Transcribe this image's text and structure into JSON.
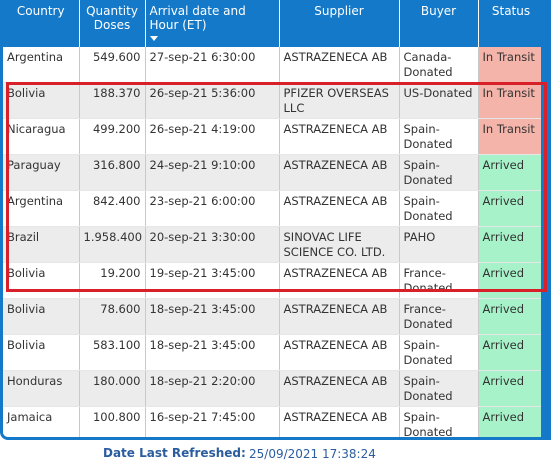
{
  "table": {
    "headers": {
      "country": "Country",
      "quantity": "Quantity Doses",
      "arrival": "Arrival date and Hour (ET)",
      "supplier": "Supplier",
      "buyer": "Buyer",
      "status": "Status"
    },
    "rows": [
      {
        "country": "Argentina",
        "quantity": "549.600",
        "arrival": "27-sep-21 6:30:00",
        "supplier": "ASTRAZENECA AB",
        "buyer": "Canada-Donated",
        "status": "In Transit"
      },
      {
        "country": "Bolivia",
        "quantity": "188.370",
        "arrival": "26-sep-21 5:36:00",
        "supplier": "PFIZER OVERSEAS LLC",
        "buyer": "US-Donated",
        "status": "In Transit"
      },
      {
        "country": "Nicaragua",
        "quantity": "499.200",
        "arrival": "26-sep-21 4:19:00",
        "supplier": "ASTRAZENECA AB",
        "buyer": "Spain-Donated",
        "status": "In Transit"
      },
      {
        "country": "Paraguay",
        "quantity": "316.800",
        "arrival": "24-sep-21 9:10:00",
        "supplier": "ASTRAZENECA AB",
        "buyer": "Spain-Donated",
        "status": "Arrived"
      },
      {
        "country": "Argentina",
        "quantity": "842.400",
        "arrival": "23-sep-21 6:00:00",
        "supplier": "ASTRAZENECA AB",
        "buyer": "Spain-Donated",
        "status": "Arrived"
      },
      {
        "country": "Brazil",
        "quantity": "1.958.400",
        "arrival": "20-sep-21 3:30:00",
        "supplier": "SINOVAC LIFE SCIENCE CO. LTD.",
        "buyer": "PAHO",
        "status": "Arrived"
      },
      {
        "country": "Bolivia",
        "quantity": "19.200",
        "arrival": "19-sep-21 3:45:00",
        "supplier": "ASTRAZENECA AB",
        "buyer": "France-Donated",
        "status": "Arrived"
      },
      {
        "country": "Bolivia",
        "quantity": "78.600",
        "arrival": "18-sep-21 3:45:00",
        "supplier": "ASTRAZENECA AB",
        "buyer": "France-Donated",
        "status": "Arrived"
      },
      {
        "country": "Bolivia",
        "quantity": "583.100",
        "arrival": "18-sep-21 3:45:00",
        "supplier": "ASTRAZENECA AB",
        "buyer": "Spain-Donated",
        "status": "Arrived"
      },
      {
        "country": "Honduras",
        "quantity": "180.000",
        "arrival": "18-sep-21 2:20:00",
        "supplier": "ASTRAZENECA AB",
        "buyer": "Spain-Donated",
        "status": "Arrived"
      },
      {
        "country": "Jamaica",
        "quantity": "100.800",
        "arrival": "16-sep-21 7:45:00",
        "supplier": "ASTRAZENECA AB",
        "buyer": "Spain-Donated",
        "status": "Arrived"
      }
    ]
  },
  "footer": {
    "label": "Date Last Refreshed:",
    "value": "25/09/2021 17:38:24"
  },
  "colors": {
    "header_bg": "#1479c8",
    "in_transit": "#f4b4aa",
    "arrived": "#a7f2c9",
    "highlight": "#d7202a"
  }
}
